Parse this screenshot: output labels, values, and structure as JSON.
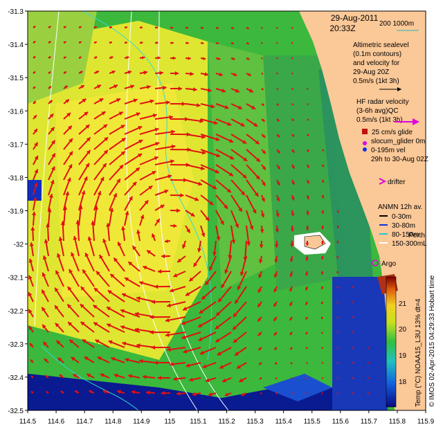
{
  "header": {
    "date": "29-Aug-2011",
    "time": "20:33Z",
    "scale_label": "200  1000m"
  },
  "axes": {
    "lon_ticks": [
      "114.5",
      "114.6",
      "114.7",
      "114.8",
      "114.9",
      "115",
      "115.1",
      "115.2",
      "115.3",
      "115.4",
      "115.5",
      "115.6",
      "115.7",
      "115.8",
      "115.9"
    ],
    "lat_ticks": [
      "-31.3",
      "-31.4",
      "-31.5",
      "-31.6",
      "-31.7",
      "-31.8",
      "-31.9",
      "-32",
      "-32.1",
      "-32.2",
      "-32.3",
      "-32.4",
      "-32.5"
    ],
    "lon_range": [
      114.5,
      115.9
    ],
    "lat_range": [
      -32.5,
      -31.3
    ]
  },
  "legend": {
    "altimetric": [
      "Altimetric sealevel",
      "(0.1m contours)",
      "and velocity for",
      "29-Aug 20Z",
      "0.5m/s (1kt 3h)"
    ],
    "hf_radar": [
      "HF radar velocity",
      "(3-6h avg)QC",
      "0.5m/s (1kt 3h)"
    ],
    "glider": [
      "25 cm/s glide",
      "slocum_glider 0m",
      "0-195m vel",
      "29h to 30-Aug 02Z"
    ],
    "drifter": "drifter",
    "anmn_title": "ANMN 12h av.",
    "anmn_items": [
      {
        "label": "0-30m",
        "color": "#000000"
      },
      {
        "label": "30-80m",
        "color": "#1030e0"
      },
      {
        "label": "80-150m",
        "color": "#20c8d0"
      },
      {
        "label": "150-300m",
        "color": "#ffffff"
      }
    ],
    "argo": "Argo",
    "place_perth": "Perth",
    "place_l": "L"
  },
  "colorbar": {
    "title": "Temp (°C) NOAA15_L3U 13% dt=4",
    "ticks": [
      "21",
      "20",
      "19",
      "18"
    ],
    "range": [
      17.3,
      21.8
    ]
  },
  "credit": "© IMOS 02-Apr-2015 04:29:33 Hobart time",
  "colors": {
    "land": "#fbc898",
    "current_arrow": "#e01010",
    "hf_arrow": "#e000e0",
    "ocean_deep": "#0a1a90"
  }
}
